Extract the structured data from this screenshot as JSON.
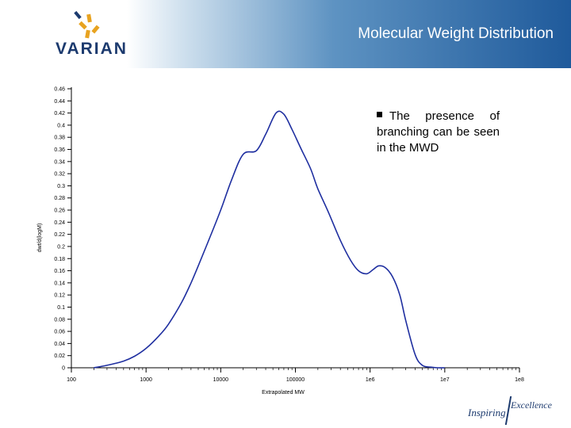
{
  "header": {
    "logo_text": "VARIAN",
    "title": "Molecular Weight Distribution"
  },
  "note": {
    "text": "The presence of branching can be seen in the MWD"
  },
  "footer": {
    "tagline_left": "Inspiring",
    "tagline_right": "Excellence"
  },
  "colors": {
    "curve": "#1f2fa0",
    "header_dark": "#1f5a9b",
    "brand_navy": "#1c3a6e",
    "logo_gold": "#e8a320"
  },
  "icons": [
    "varian-logo-icon",
    "bullet-square-icon"
  ],
  "chart_data": {
    "type": "line",
    "xlabel": "Extrapolated MW",
    "ylabel": "dwt/d(logM)",
    "x_scale": "log",
    "xlim": [
      100,
      100000000
    ],
    "ylim": [
      0,
      0.46
    ],
    "y_ticks": [
      0,
      0.02,
      0.04,
      0.06,
      0.08,
      0.1,
      0.12,
      0.14,
      0.16,
      0.18,
      0.2,
      0.22,
      0.24,
      0.26,
      0.28,
      0.3,
      0.32,
      0.34,
      0.36,
      0.38,
      0.4,
      0.42,
      0.44,
      0.46
    ],
    "y_tick_labels": [
      "0",
      "0.02",
      "0.04",
      "0.06",
      "0.08",
      "0.1",
      "0.12",
      "0.14",
      "0.16",
      "0.18",
      "0.2",
      "0.22",
      "0.24",
      "0.26",
      "0.28",
      "0.3",
      "0.32",
      "0.34",
      "0.36",
      "0.38",
      "0.4",
      "0.42",
      "0.44",
      "0.46"
    ],
    "x_ticks": [
      100,
      1000,
      10000,
      100000,
      1000000,
      10000000,
      100000000
    ],
    "x_tick_labels": [
      "100",
      "1000",
      "10000",
      "100000",
      "1e6",
      "1e7",
      "1e8"
    ],
    "grid": false,
    "series": [
      {
        "x": [
          200,
          300,
          500,
          700,
          1000,
          1500,
          2000,
          3000,
          4000,
          5000,
          7000,
          10000,
          14000,
          20000,
          30000,
          40000,
          55000,
          70000,
          90000,
          120000,
          160000,
          200000,
          280000,
          400000,
          550000,
          700000,
          900000,
          1100000,
          1300000,
          1600000,
          2000000,
          2500000,
          3000000,
          4000000,
          5000000,
          6500000,
          8000000,
          10000000
        ],
        "y": [
          0.0,
          0.004,
          0.011,
          0.019,
          0.032,
          0.053,
          0.072,
          0.108,
          0.14,
          0.168,
          0.212,
          0.26,
          0.31,
          0.352,
          0.358,
          0.385,
          0.42,
          0.418,
          0.393,
          0.36,
          0.328,
          0.295,
          0.255,
          0.21,
          0.177,
          0.16,
          0.155,
          0.162,
          0.168,
          0.165,
          0.15,
          0.12,
          0.078,
          0.022,
          0.004,
          0.001,
          0.0,
          0.0
        ]
      }
    ]
  }
}
